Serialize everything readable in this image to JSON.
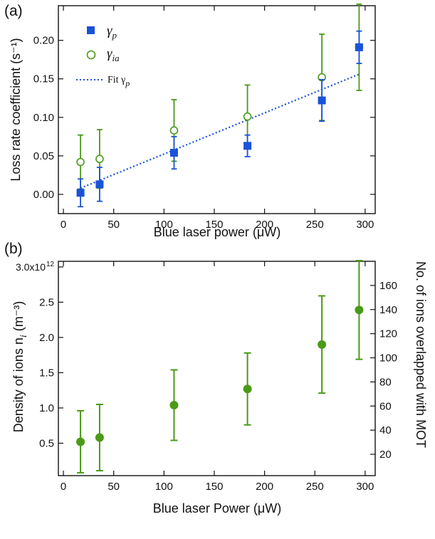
{
  "chart_data": [
    {
      "type": "scatter",
      "panel_label": "(a)",
      "xlabel": "Blue laser power (μW)",
      "ylabel": "Loss rate coefficient (s⁻¹)",
      "xlim": [
        -5,
        310
      ],
      "ylim": [
        -0.025,
        0.245
      ],
      "xticks": [
        0,
        50,
        100,
        150,
        200,
        250,
        300
      ],
      "yticks": [
        0.0,
        0.05,
        0.1,
        0.15,
        0.2
      ],
      "ytick_labels": [
        "0.00",
        "0.05",
        "0.10",
        "0.15",
        "0.20"
      ],
      "legend_position": "top-left",
      "series": [
        {
          "name": "γp",
          "marker": "filled-square",
          "color": "#1a52d8",
          "points": [
            {
              "x": 17,
              "y": 0.002,
              "err": 0.018
            },
            {
              "x": 36,
              "y": 0.013,
              "err": 0.022
            },
            {
              "x": 110,
              "y": 0.054,
              "err": 0.021
            },
            {
              "x": 183,
              "y": 0.063,
              "err": 0.014
            },
            {
              "x": 257,
              "y": 0.122,
              "err": 0.027
            },
            {
              "x": 294,
              "y": 0.191,
              "err": 0.021
            }
          ]
        },
        {
          "name": "γia",
          "marker": "open-circle",
          "color": "#4a9a18",
          "points": [
            {
              "x": 17,
              "y": 0.042,
              "err": 0.035
            },
            {
              "x": 36,
              "y": 0.046,
              "err": 0.038
            },
            {
              "x": 110,
              "y": 0.083,
              "err": 0.04
            },
            {
              "x": 183,
              "y": 0.101,
              "err": 0.041
            },
            {
              "x": 257,
              "y": 0.152,
              "err": 0.056
            },
            {
              "x": 294,
              "y": 0.191,
              "err": 0.056
            }
          ]
        },
        {
          "name": "Fit γp",
          "type": "line",
          "style": "dotted",
          "color": "#1a52d8",
          "x": [
            17,
            294
          ],
          "y": [
            0.008,
            0.156
          ]
        }
      ],
      "legend": [
        {
          "text": "γ",
          "sub": "p"
        },
        {
          "text": "γ",
          "sub": "ia"
        },
        {
          "text": "Fit γ",
          "sub": "p"
        }
      ]
    },
    {
      "type": "scatter",
      "panel_label": "(b)",
      "xlabel": "Blue laser Power (μW)",
      "ylabel": "Density of ions  n",
      "ylabel_sub": "i",
      "ylabel_unit": "(m⁻³)",
      "y2label": "No. of ions overlapped with MOT",
      "xlim": [
        -5,
        310
      ],
      "ylim": [
        0.04,
        3.08
      ],
      "y2lim": [
        2.3,
        180
      ],
      "xticks": [
        0,
        50,
        100,
        150,
        200,
        250,
        300
      ],
      "yticks": [
        0.5,
        1.0,
        1.5,
        2.0,
        2.5,
        3.0
      ],
      "ytick_labels": [
        "0.5",
        "1.0",
        "1.5",
        "2.0",
        "2.5",
        "3.0x10"
      ],
      "ytick_top_exponent": "12",
      "y2ticks": [
        20,
        40,
        60,
        80,
        100,
        120,
        140,
        160
      ],
      "series": [
        {
          "name": "",
          "marker": "filled-circle",
          "color": "#4a9a18",
          "points": [
            {
              "x": 17,
              "y": 0.52,
              "err": 0.44
            },
            {
              "x": 36,
              "y": 0.58,
              "err": 0.47
            },
            {
              "x": 110,
              "y": 1.04,
              "err": 0.5
            },
            {
              "x": 183,
              "y": 1.27,
              "err": 0.51
            },
            {
              "x": 257,
              "y": 1.9,
              "err": 0.69
            },
            {
              "x": 294,
              "y": 2.39,
              "err": 0.7
            }
          ]
        }
      ]
    }
  ]
}
